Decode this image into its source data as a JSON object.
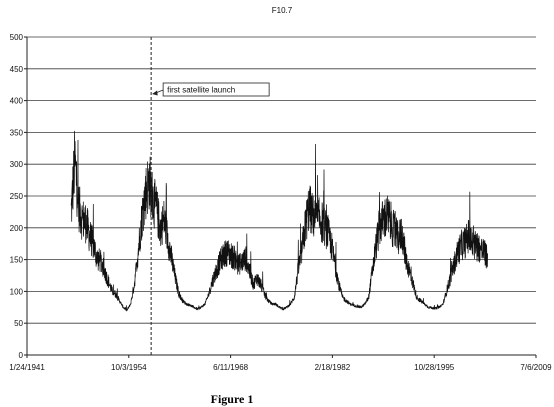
{
  "chart_data": {
    "type": "line",
    "title": "F10.7",
    "xlabel": "",
    "ylabel": "",
    "ylim": [
      0,
      500
    ],
    "yticks": [
      0,
      50,
      100,
      150,
      200,
      250,
      300,
      350,
      400,
      450,
      500
    ],
    "xlim": [
      "1941-01-24",
      "2009-07-06"
    ],
    "xtick_labels": [
      "1/24/1941",
      "10/3/1954",
      "6/11/1968",
      "2/18/1982",
      "10/28/1995",
      "7/6/2009"
    ],
    "xtick_dates": [
      "1941-01-24",
      "1954-10-03",
      "1968-06-11",
      "1982-02-18",
      "1995-10-28",
      "2009-07-06"
    ],
    "grid": true,
    "legend": "none",
    "series": [
      {
        "color": "#111111",
        "x": [
          "1947-01-01",
          "1947-07-01",
          "1948-01-01",
          "1948-07-01",
          "1949-01-01",
          "1949-07-01",
          "1950-01-01",
          "1950-07-01",
          "1951-01-01",
          "1951-07-01",
          "1952-01-01",
          "1952-07-01",
          "1953-01-01",
          "1953-07-01",
          "1954-01-01",
          "1954-07-01",
          "1955-01-01",
          "1955-07-01",
          "1956-01-01",
          "1956-07-01",
          "1957-01-01",
          "1957-07-01",
          "1958-01-01",
          "1958-07-01",
          "1959-01-01",
          "1959-07-01",
          "1960-01-01",
          "1960-07-01",
          "1961-01-01",
          "1961-07-01",
          "1962-01-01",
          "1962-07-01",
          "1963-01-01",
          "1963-07-01",
          "1964-01-01",
          "1964-07-01",
          "1965-01-01",
          "1965-07-01",
          "1966-01-01",
          "1966-07-01",
          "1967-01-01",
          "1967-07-01",
          "1968-01-01",
          "1968-07-01",
          "1969-01-01",
          "1969-07-01",
          "1970-01-01",
          "1970-07-01",
          "1971-01-01",
          "1971-07-01",
          "1972-01-01",
          "1972-07-01",
          "1973-01-01",
          "1973-07-01",
          "1974-01-01",
          "1974-07-01",
          "1975-01-01",
          "1975-07-01",
          "1976-01-01",
          "1976-07-01",
          "1977-01-01",
          "1977-07-01",
          "1978-01-01",
          "1978-07-01",
          "1979-01-01",
          "1979-07-01",
          "1980-01-01",
          "1980-07-01",
          "1981-01-01",
          "1981-07-01",
          "1982-01-01",
          "1982-07-01",
          "1983-01-01",
          "1983-07-01",
          "1984-01-01",
          "1984-07-01",
          "1985-01-01",
          "1985-07-01",
          "1986-01-01",
          "1986-07-01",
          "1987-01-01",
          "1987-07-01",
          "1988-01-01",
          "1988-07-01",
          "1989-01-01",
          "1989-07-01",
          "1990-01-01",
          "1990-07-01",
          "1991-01-01",
          "1991-07-01",
          "1992-01-01",
          "1992-07-01",
          "1993-01-01",
          "1993-07-01",
          "1994-01-01",
          "1994-07-01",
          "1995-01-01",
          "1995-07-01",
          "1996-01-01",
          "1996-07-01",
          "1997-01-01",
          "1997-07-01",
          "1998-01-01",
          "1998-07-01",
          "1999-01-01",
          "1999-07-01",
          "2000-01-01",
          "2000-07-01",
          "2001-01-01",
          "2001-07-01",
          "2002-01-01",
          "2002-07-01",
          "2003-01-01"
        ],
        "y": [
          220,
          300,
          230,
          210,
          205,
          185,
          170,
          150,
          145,
          130,
          115,
          100,
          95,
          85,
          75,
          70,
          80,
          110,
          160,
          210,
          250,
          270,
          240,
          225,
          195,
          210,
          180,
          150,
          120,
          95,
          85,
          80,
          78,
          75,
          72,
          75,
          80,
          95,
          115,
          130,
          145,
          155,
          160,
          155,
          150,
          140,
          145,
          150,
          130,
          110,
          120,
          110,
          95,
          85,
          80,
          80,
          75,
          72,
          75,
          80,
          90,
          130,
          160,
          200,
          230,
          215,
          210,
          210,
          200,
          190,
          170,
          140,
          110,
          90,
          85,
          80,
          78,
          76,
          75,
          80,
          90,
          130,
          170,
          200,
          210,
          215,
          205,
          190,
          180,
          190,
          150,
          130,
          110,
          90,
          85,
          80,
          75,
          74,
          73,
          75,
          80,
          100,
          120,
          140,
          160,
          170,
          175,
          185,
          170,
          170,
          165,
          160,
          150
        ]
      }
    ],
    "annotations": [
      {
        "text": "first satellite launch",
        "x": "1957-10-04"
      }
    ]
  },
  "figure": {
    "caption": "Figure 1"
  }
}
